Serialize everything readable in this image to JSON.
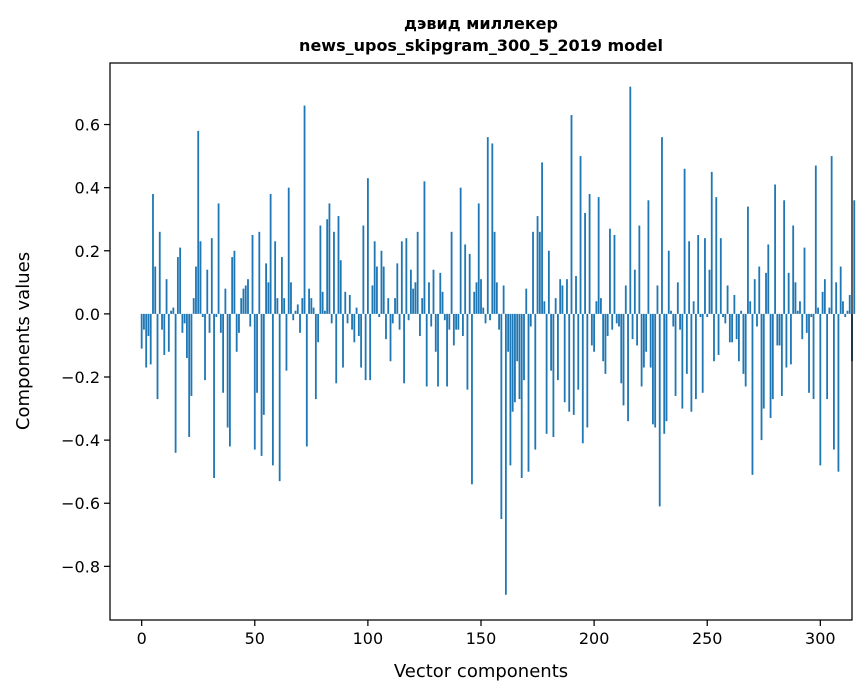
{
  "chart_data": {
    "type": "bar",
    "title": "дэвид миллекер",
    "subtitle": "news_upos_skipgram_300_5_2019 model",
    "xlabel": "Vector components",
    "ylabel": "Components values",
    "xlim": [
      -14,
      314
    ],
    "ylim": [
      -0.97,
      0.795
    ],
    "xticks": [
      0,
      50,
      100,
      150,
      200,
      250,
      300
    ],
    "xtick_labels": [
      "0",
      "50",
      "100",
      "150",
      "200",
      "250",
      "300"
    ],
    "yticks": [
      -0.8,
      -0.6,
      -0.4,
      -0.2,
      0.0,
      0.2,
      0.4,
      0.6
    ],
    "ytick_labels": [
      "−0.8",
      "−0.6",
      "−0.4",
      "−0.2",
      "0.0",
      "0.2",
      "0.4",
      "0.6"
    ],
    "grid": false,
    "bar_color": "#1f77b4",
    "values": [
      -0.11,
      -0.05,
      -0.17,
      -0.07,
      -0.16,
      0.38,
      0.15,
      -0.27,
      0.26,
      -0.05,
      -0.13,
      0.11,
      -0.12,
      0.01,
      0.02,
      -0.44,
      0.18,
      0.21,
      -0.06,
      -0.03,
      -0.14,
      -0.39,
      -0.26,
      0.05,
      0.15,
      0.58,
      0.23,
      -0.01,
      -0.21,
      0.14,
      -0.06,
      0.24,
      -0.52,
      -0.01,
      0.35,
      -0.06,
      -0.25,
      0.08,
      -0.36,
      -0.42,
      0.18,
      0.2,
      -0.12,
      -0.06,
      0.05,
      0.08,
      0.09,
      0.11,
      -0.04,
      0.25,
      -0.43,
      -0.25,
      0.26,
      -0.45,
      -0.32,
      0.16,
      0.1,
      0.38,
      -0.48,
      0.23,
      0.05,
      -0.53,
      0.18,
      0.05,
      -0.18,
      0.4,
      0.1,
      -0.02,
      0.01,
      0.03,
      -0.06,
      0.05,
      0.66,
      -0.42,
      0.08,
      0.05,
      0.02,
      -0.27,
      -0.09,
      0.28,
      0.07,
      0.01,
      0.3,
      0.35,
      -0.03,
      0.26,
      -0.22,
      0.31,
      0.17,
      -0.17,
      0.07,
      -0.03,
      0.06,
      -0.05,
      -0.09,
      0.02,
      -0.07,
      -0.17,
      0.28,
      -0.21,
      0.43,
      -0.21,
      0.09,
      0.23,
      0.15,
      -0.01,
      0.2,
      0.15,
      -0.08,
      0.05,
      -0.15,
      -0.03,
      0.05,
      0.16,
      -0.05,
      0.23,
      -0.22,
      0.24,
      -0.02,
      0.14,
      0.08,
      0.1,
      0.26,
      -0.07,
      0.05,
      0.42,
      -0.23,
      0.1,
      -0.04,
      0.14,
      -0.12,
      -0.23,
      0.13,
      0.07,
      -0.02,
      -0.23,
      -0.05,
      0.26,
      -0.1,
      -0.05,
      -0.05,
      0.4,
      -0.07,
      0.22,
      -0.24,
      0.19,
      -0.54,
      0.07,
      0.1,
      0.35,
      0.11,
      0.02,
      -0.03,
      0.56,
      -0.02,
      0.54,
      0.26,
      0.1,
      -0.05,
      -0.65,
      0.09,
      -0.89,
      -0.12,
      -0.48,
      -0.31,
      -0.28,
      -0.15,
      -0.27,
      -0.52,
      -0.21,
      0.08,
      -0.5,
      -0.04,
      0.26,
      -0.43,
      0.31,
      0.26,
      0.48,
      0.04,
      -0.38,
      0.2,
      -0.18,
      -0.39,
      0.05,
      -0.21,
      0.11,
      0.09,
      -0.28,
      0.11,
      -0.31,
      0.63,
      -0.32,
      0.12,
      -0.24,
      0.5,
      -0.41,
      0.32,
      -0.36,
      0.38,
      -0.1,
      -0.12,
      0.04,
      0.37,
      0.05,
      -0.15,
      -0.19,
      -0.07,
      0.27,
      -0.05,
      0.25,
      -0.03,
      -0.04,
      -0.22,
      -0.29,
      0.09,
      -0.34,
      0.72,
      -0.08,
      0.14,
      -0.1,
      0.28,
      -0.23,
      -0.17,
      -0.12,
      0.36,
      -0.17,
      -0.35,
      -0.36,
      0.09,
      -0.61,
      0.56,
      -0.38,
      -0.34,
      0.2,
      0.01,
      -0.04,
      -0.26,
      0.1,
      -0.05,
      -0.3,
      0.46,
      -0.19,
      0.23,
      -0.31,
      0.04,
      -0.27,
      0.25,
      -0.01,
      -0.25,
      0.24,
      -0.01,
      0.14,
      0.45,
      -0.15,
      0.37,
      -0.13,
      0.24,
      -0.01,
      -0.03,
      0.09,
      -0.09,
      -0.09,
      0.06,
      -0.08,
      -0.15,
      0.01,
      -0.19,
      -0.23,
      0.34,
      0.04,
      -0.51,
      0.11,
      -0.04,
      0.15,
      -0.4,
      -0.3,
      0.13,
      0.22,
      -0.33,
      -0.27,
      0.41,
      -0.1,
      -0.1,
      -0.26,
      0.36,
      -0.17,
      0.13,
      -0.16,
      0.28,
      0.1,
      0.01,
      0.04,
      -0.08,
      0.21,
      -0.06,
      -0.25,
      -0.01,
      -0.27,
      0.47,
      0.02,
      -0.48,
      0.07,
      0.11,
      -0.27,
      0.02,
      0.5,
      -0.43,
      0.1,
      -0.5,
      0.15,
      0.04,
      -0.01,
      0.01,
      0.06,
      -0.15,
      0.36
    ]
  }
}
